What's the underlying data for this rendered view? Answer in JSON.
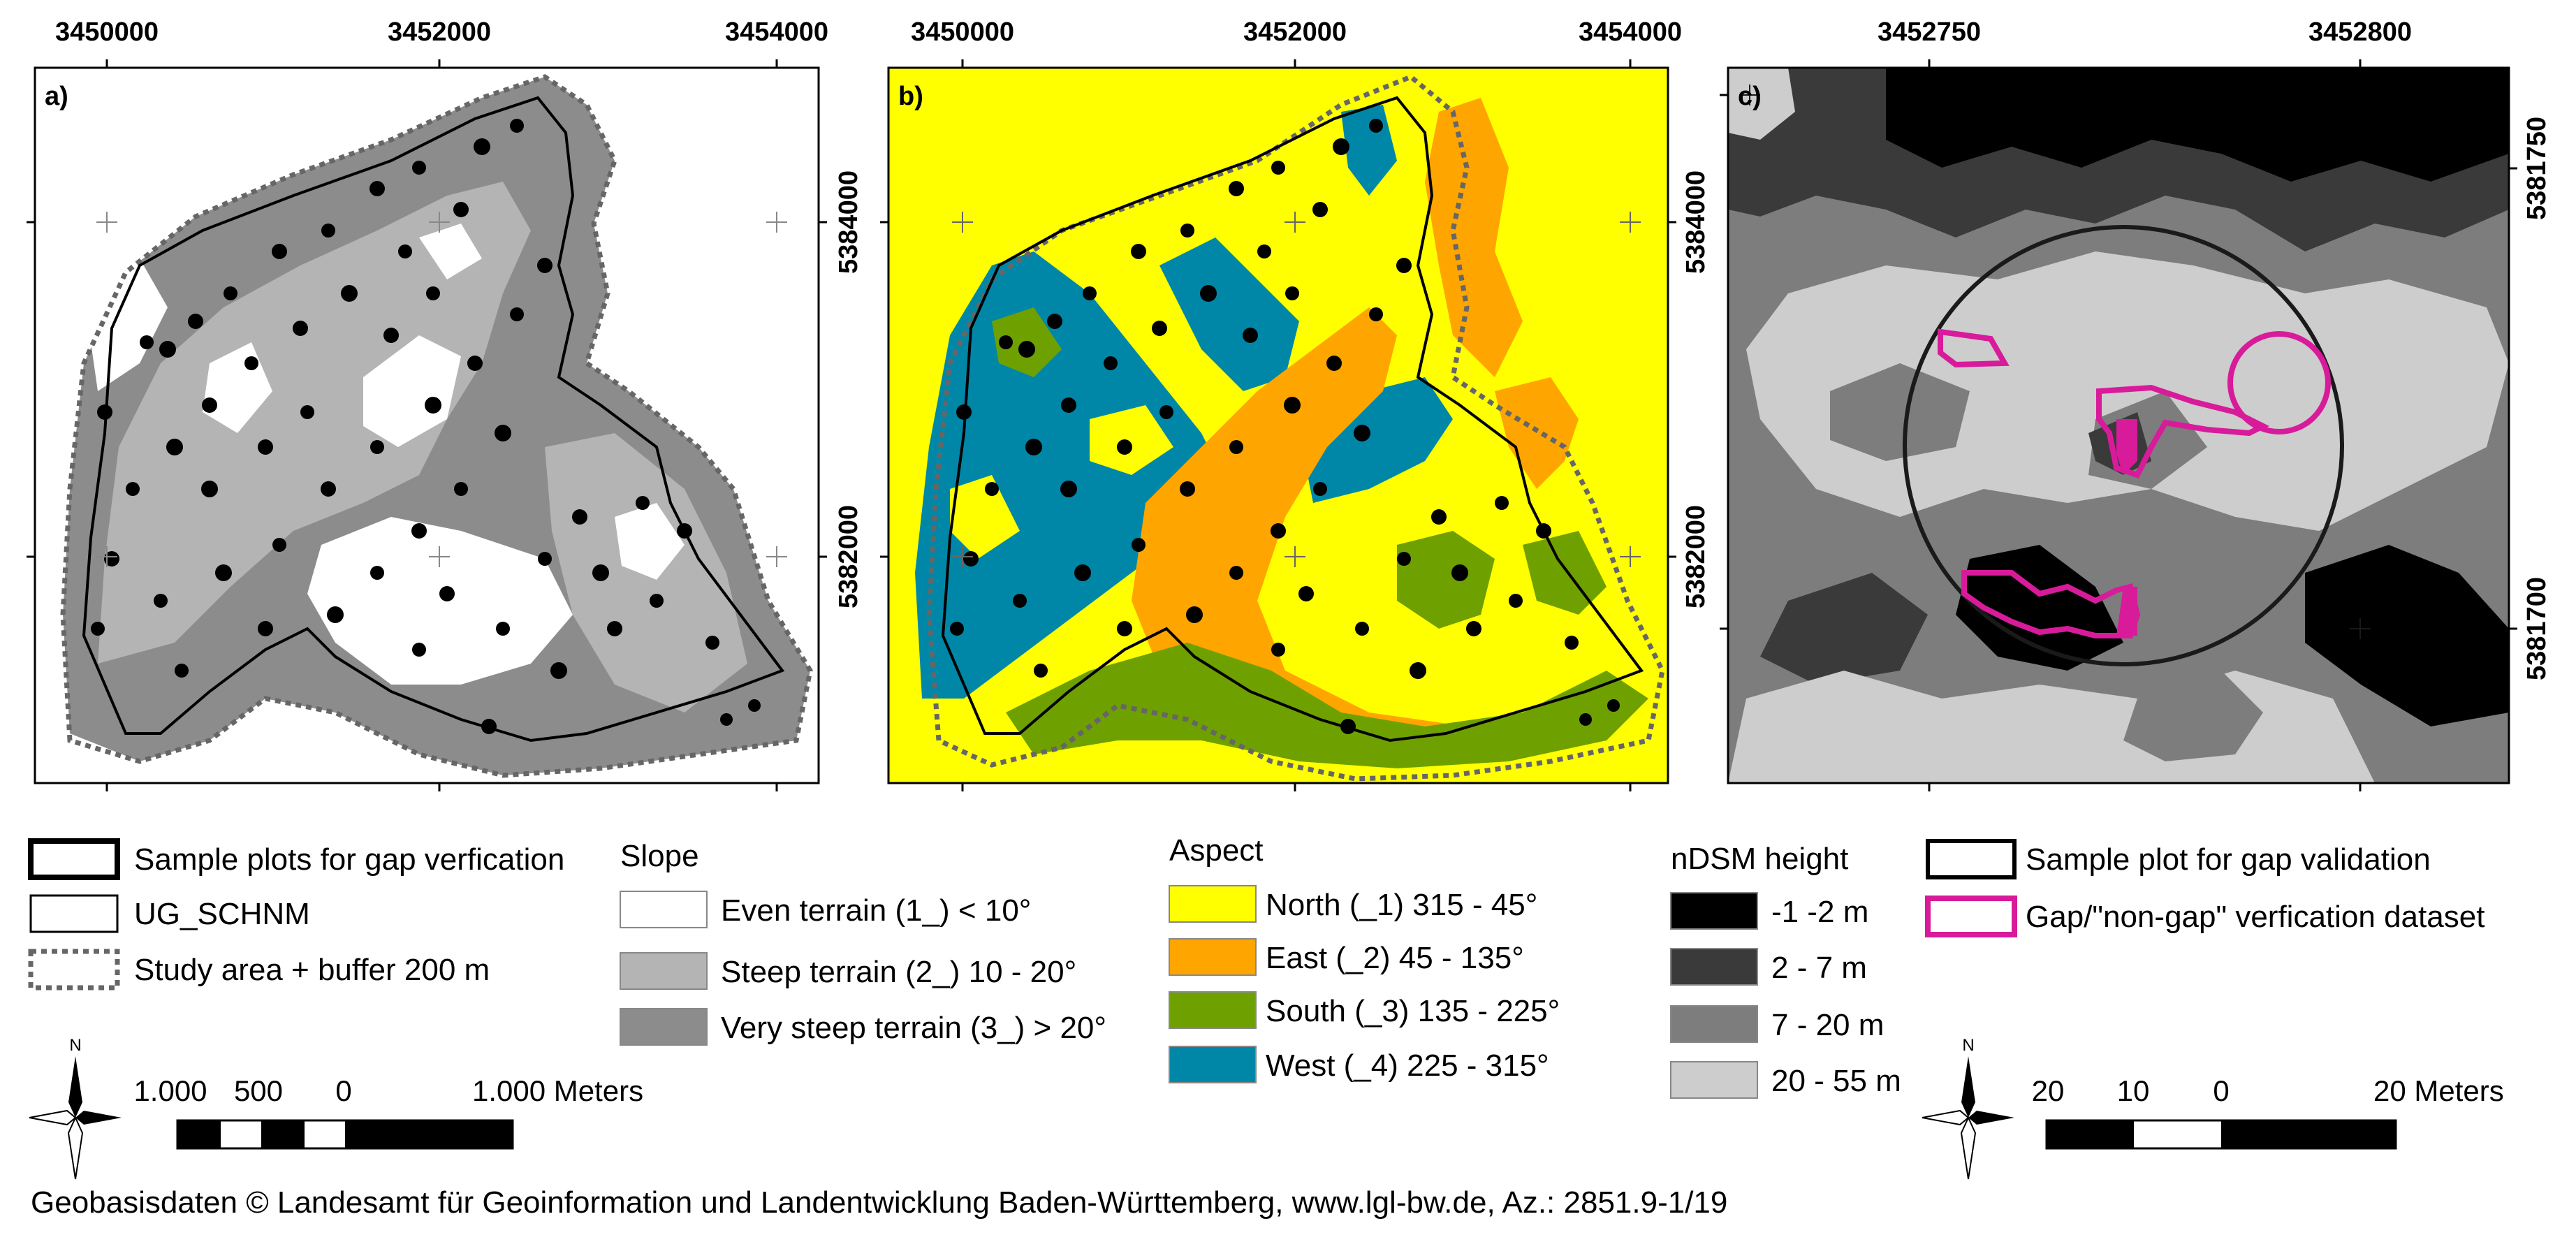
{
  "colors": {
    "slope_even": "#ffffff",
    "slope_steep": "#b4b4b4",
    "slope_very_steep": "#8c8c8c",
    "aspect_north": "#ffff00",
    "aspect_east": "#ffa500",
    "aspect_south": "#6ea100",
    "aspect_west": "#0087a8",
    "ndsm_1": "#000000",
    "ndsm_2": "#3a3a3a",
    "ndsm_3": "#7d7d7d",
    "ndsm_4": "#cdcdcd",
    "magenta": "#d81b9a",
    "boundary": "#000000",
    "buffer": "#666666"
  },
  "panels": {
    "a": {
      "label": "a)",
      "top_ticks": [
        "3450000",
        "3452000",
        "3454000"
      ],
      "right_ticks": [
        "5384000",
        "5382000"
      ]
    },
    "b": {
      "label": "b)",
      "top_ticks": [
        "3450000",
        "3452000",
        "3454000"
      ],
      "right_ticks": [
        "5384000",
        "5382000"
      ]
    },
    "c": {
      "label": "c)",
      "top_ticks": [
        "3452750",
        "3452800"
      ],
      "right_ticks": [
        "5381750",
        "5381700"
      ]
    }
  },
  "legend_left": {
    "sample_plots": "Sample plots for gap verfication",
    "ug": "UG_SCHNM",
    "study_area": "Study area + buffer 200 m"
  },
  "legend_slope": {
    "title": "Slope",
    "items": [
      "Even terrain (1_) < 10°",
      "Steep terrain (2_) 10 - 20°",
      "Very steep terrain (3_) > 20°"
    ]
  },
  "legend_aspect": {
    "title": "Aspect",
    "items": [
      "North (_1) 315 - 45°",
      "East (_2) 45 - 135°",
      "South (_3) 135 - 225°",
      "West (_4) 225 - 315°"
    ]
  },
  "legend_ndsm": {
    "title": "nDSM height",
    "items": [
      "-1  -2 m",
      "2 - 7 m",
      "7 - 20 m",
      "20 - 55 m"
    ]
  },
  "legend_right": {
    "sample_plot": "Sample plot for gap validation",
    "gap": "Gap/\"non-gap\" verfication dataset"
  },
  "scalebar_left": {
    "labels": [
      "1.000",
      "500",
      "0",
      "1.000 Meters"
    ],
    "north": "N"
  },
  "scalebar_right": {
    "labels": [
      "20",
      "10",
      "0",
      "20 Meters"
    ],
    "north": "N"
  },
  "credit": "Geobasisdaten © Landesamt für Geoinformation und Landentwicklung Baden-Württemberg, www.lgl-bw.de, Az.: 2851.9-1/19"
}
